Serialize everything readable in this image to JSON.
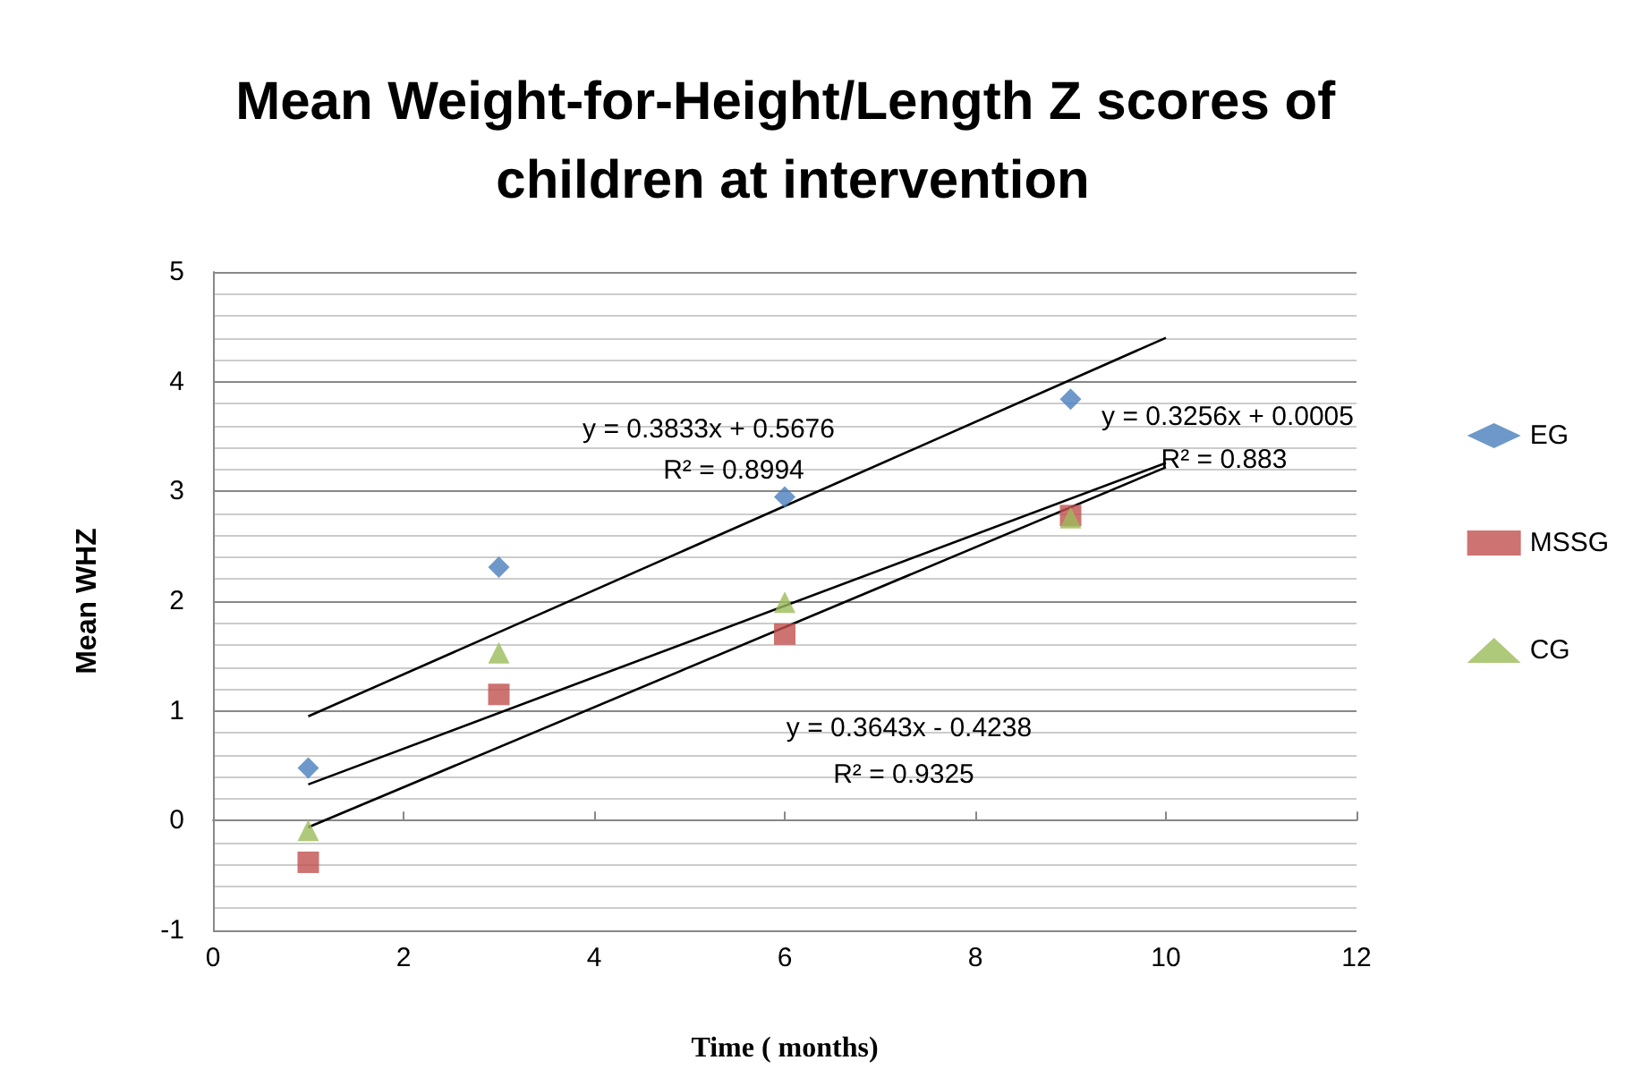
{
  "chart_data": {
    "type": "scatter",
    "title": "Mean Weight-for-Height/Length Z scores of children at intervention",
    "xlabel": "Time ( months)",
    "ylabel": "Mean WHZ",
    "xlim": [
      0,
      12
    ],
    "xticks": [
      0,
      2,
      4,
      6,
      8,
      10,
      12
    ],
    "ylim": [
      -1,
      5
    ],
    "yticks": [
      -1,
      0,
      1,
      2,
      3,
      4,
      5
    ],
    "grid": "y",
    "legend": "right",
    "series": [
      {
        "name": "EG",
        "color": "#4a7ebb",
        "marker": "diamond",
        "x": [
          1,
          3,
          6,
          9
        ],
        "values": [
          0.48,
          2.31,
          2.95,
          3.84
        ]
      },
      {
        "name": "MSSG",
        "color": "#c0504d",
        "marker": "square",
        "x": [
          1,
          3,
          6,
          9
        ],
        "values": [
          -0.38,
          1.15,
          1.7,
          2.78
        ]
      },
      {
        "name": "CG",
        "color": "#9bbb59",
        "marker": "triangle",
        "x": [
          1,
          3,
          6,
          9
        ],
        "values": [
          -0.09,
          1.53,
          1.99,
          2.76
        ]
      },
      {
        "type": "line",
        "color": "#000000",
        "marker": "none",
        "x": [
          1,
          10
        ],
        "values": [
          0.95,
          4.4
        ]
      },
      {
        "type": "line",
        "color": "#000000",
        "marker": "none",
        "x": [
          1,
          10
        ],
        "values": [
          -0.06,
          3.22
        ]
      },
      {
        "type": "line",
        "color": "#000000",
        "marker": "none",
        "x": [
          1,
          10
        ],
        "values": [
          0.33,
          3.26
        ]
      }
    ],
    "annotations": [
      "y = 0.3833x + 0.5676",
      "R² = 0.8994",
      "y = 0.3256x + 0.0005",
      "R² = 0.883",
      "y = 0.3643x - 0.4238",
      "R² = 0.9325"
    ]
  }
}
